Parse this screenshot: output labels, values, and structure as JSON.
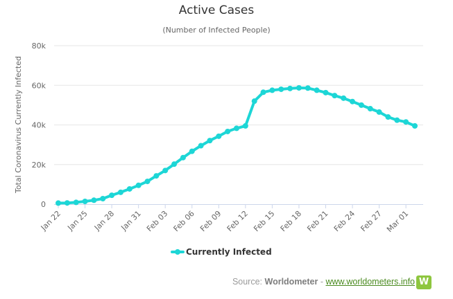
{
  "chart_data": {
    "type": "line",
    "title": "Active Cases",
    "subtitle": "(Number of Infected People)",
    "ylabel": "Total Coronavirus Currently Infected",
    "xlabel": "",
    "ylim": [
      0,
      80000
    ],
    "yticks": [
      0,
      20000,
      40000,
      60000,
      80000
    ],
    "ytick_labels": [
      "0",
      "20k",
      "40k",
      "60k",
      "80k"
    ],
    "grid": true,
    "legend_position": "bottom-center",
    "x": [
      "Jan 22",
      "Jan 23",
      "Jan 24",
      "Jan 25",
      "Jan 26",
      "Jan 27",
      "Jan 28",
      "Jan 29",
      "Jan 30",
      "Jan 31",
      "Feb 01",
      "Feb 02",
      "Feb 03",
      "Feb 04",
      "Feb 05",
      "Feb 06",
      "Feb 07",
      "Feb 08",
      "Feb 09",
      "Feb 10",
      "Feb 11",
      "Feb 12",
      "Feb 13",
      "Feb 14",
      "Feb 15",
      "Feb 16",
      "Feb 17",
      "Feb 18",
      "Feb 19",
      "Feb 20",
      "Feb 21",
      "Feb 22",
      "Feb 23",
      "Feb 24",
      "Feb 25",
      "Feb 26",
      "Feb 27",
      "Feb 28",
      "Feb 29",
      "Mar 01",
      "Mar 02"
    ],
    "xtick_labels": [
      "Jan 22",
      "Jan 25",
      "Jan 28",
      "Jan 31",
      "Feb 03",
      "Feb 06",
      "Feb 09",
      "Feb 12",
      "Feb 15",
      "Feb 18",
      "Feb 21",
      "Feb 24",
      "Feb 27",
      "Mar 01"
    ],
    "series": [
      {
        "name": "Currently Infected",
        "color": "#1dd6d6",
        "values": [
          555,
          630,
          900,
          1400,
          2000,
          2800,
          4500,
          6000,
          7700,
          9500,
          11500,
          14300,
          17000,
          20200,
          23500,
          26700,
          29500,
          32100,
          34300,
          36700,
          38300,
          39500,
          52000,
          56500,
          57500,
          58000,
          58400,
          58700,
          58600,
          57500,
          56300,
          54800,
          53500,
          51800,
          50000,
          48200,
          46500,
          44000,
          42400,
          41500,
          39500
        ]
      }
    ]
  },
  "credit": {
    "prefix": "Source: ",
    "brand": "Worldometer",
    "separator": " - ",
    "link": "www.worldometers.info",
    "logo_letter": "W"
  }
}
